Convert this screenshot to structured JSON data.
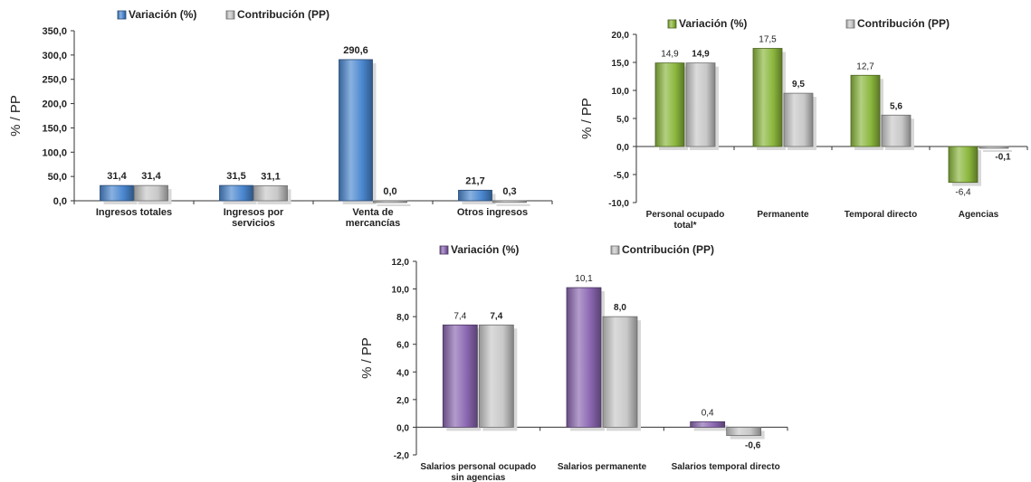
{
  "chart_data": [
    {
      "type": "bar",
      "categories": [
        [
          "Ingresos totales"
        ],
        [
          "Ingresos por",
          "servicios"
        ],
        [
          "Venta de",
          "mercancías"
        ],
        [
          "Otros ingresos"
        ]
      ],
      "series": [
        {
          "name": "Variación (%)",
          "values": [
            31.4,
            31.5,
            290.6,
            21.7
          ],
          "labels": [
            "31,4",
            "31,5",
            "290,6",
            "21,7"
          ]
        },
        {
          "name": "Contribución (PP)",
          "values": [
            31.4,
            31.1,
            0.0,
            0.3
          ],
          "labels": [
            "31,4",
            "31,1",
            "0,0",
            "0,3"
          ]
        }
      ],
      "ylabel": "% / PP",
      "ylim": [
        0,
        350
      ],
      "yticks": [
        "0,0",
        "50,0",
        "100,0",
        "150,0",
        "200,0",
        "250,0",
        "300,0",
        "350,0"
      ],
      "legend": "top",
      "grid": false,
      "colors": [
        "#4a87d0",
        "#c8c8c8"
      ]
    },
    {
      "type": "bar",
      "categories": [
        [
          "Personal ocupado",
          "total*"
        ],
        [
          "Permanente"
        ],
        [
          "Temporal directo"
        ],
        [
          "Agencias"
        ]
      ],
      "series": [
        {
          "name": "Variación (%)",
          "values": [
            14.9,
            17.5,
            12.7,
            -6.4
          ],
          "labels": [
            "14,9",
            "17,5",
            "12,7",
            "-6,4"
          ]
        },
        {
          "name": "Contribución (PP)",
          "values": [
            14.9,
            9.5,
            5.6,
            -0.1
          ],
          "labels": [
            "14,9",
            "9,5",
            "5,6",
            "-0,1"
          ]
        }
      ],
      "ylabel": "% / PP",
      "ylim": [
        -10,
        20
      ],
      "yticks": [
        "-10,0",
        "-5,0",
        "0,0",
        "5,0",
        "10,0",
        "15,0",
        "20,0"
      ],
      "legend": "top",
      "grid": false,
      "colors": [
        "#8ab63c",
        "#c8c8c8"
      ]
    },
    {
      "type": "bar",
      "categories": [
        [
          "Salarios personal ocupado",
          "sin agencias"
        ],
        [
          "Salarios permanente"
        ],
        [
          "Salarios temporal directo"
        ]
      ],
      "series": [
        {
          "name": "Variación (%)",
          "values": [
            7.4,
            10.1,
            0.4
          ],
          "labels": [
            "7,4",
            "10,1",
            "0,4"
          ]
        },
        {
          "name": "Contribución (PP)",
          "values": [
            7.4,
            8.0,
            -0.6
          ],
          "labels": [
            "7,4",
            "8,0",
            "-0,6"
          ]
        }
      ],
      "ylabel": "% / PP",
      "ylim": [
        -2,
        12
      ],
      "yticks": [
        "-2,0",
        "0,0",
        "2,0",
        "4,0",
        "6,0",
        "8,0",
        "10,0",
        "12,0"
      ],
      "legend": "top",
      "grid": false,
      "colors": [
        "#8a66b0",
        "#c8c8c8"
      ]
    }
  ]
}
